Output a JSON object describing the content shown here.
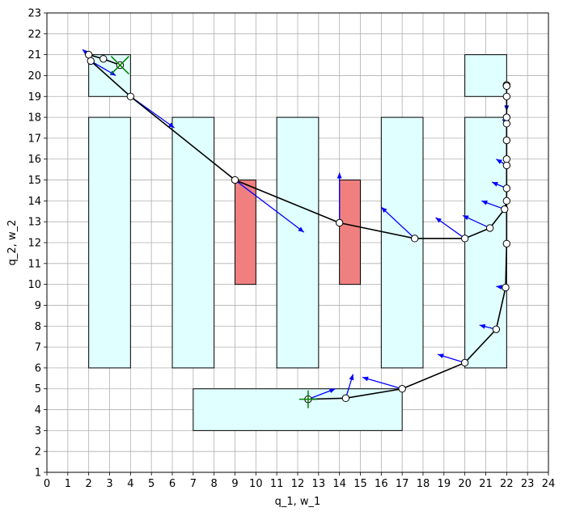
{
  "chart_data": {
    "type": "scatter",
    "title": "",
    "xlabel": "q_1, w_1",
    "ylabel": "q_2, w_2",
    "xlim": [
      0,
      24
    ],
    "ylim": [
      1,
      23
    ],
    "xticks": [
      0,
      1,
      2,
      3,
      4,
      5,
      6,
      7,
      8,
      9,
      10,
      11,
      12,
      13,
      14,
      15,
      16,
      17,
      18,
      19,
      20,
      21,
      22,
      23,
      24
    ],
    "yticks": [
      1,
      2,
      3,
      4,
      5,
      6,
      7,
      8,
      9,
      10,
      11,
      12,
      13,
      14,
      15,
      16,
      17,
      18,
      19,
      20,
      21,
      22,
      23
    ],
    "grid": true,
    "colors": {
      "free_region": "#e0ffff",
      "obstacle": "#f08080",
      "path": "#000000",
      "velocity_arrow": "#0000ff",
      "marker": "#008000"
    },
    "free_regions": [
      {
        "x0": 2,
        "x1": 4,
        "y0": 19,
        "y1": 21
      },
      {
        "x0": 2,
        "x1": 4,
        "y0": 6,
        "y1": 18
      },
      {
        "x0": 6,
        "x1": 8,
        "y0": 6,
        "y1": 18
      },
      {
        "x0": 11,
        "x1": 13,
        "y0": 6,
        "y1": 18
      },
      {
        "x0": 16,
        "x1": 18,
        "y0": 6,
        "y1": 18
      },
      {
        "x0": 20,
        "x1": 22,
        "y0": 19,
        "y1": 21
      },
      {
        "x0": 20,
        "x1": 22,
        "y0": 6,
        "y1": 18
      },
      {
        "x0": 7,
        "x1": 17,
        "y0": 3,
        "y1": 5
      }
    ],
    "obstacles": [
      {
        "x0": 9,
        "x1": 10,
        "y0": 10,
        "y1": 15
      },
      {
        "x0": 14,
        "x1": 15,
        "y0": 10,
        "y1": 15
      }
    ],
    "path": [
      {
        "x": 3.5,
        "y": 20.5
      },
      {
        "x": 2.7,
        "y": 20.8
      },
      {
        "x": 2.0,
        "y": 21.0
      },
      {
        "x": 2.1,
        "y": 20.7
      },
      {
        "x": 4.0,
        "y": 19.0
      },
      {
        "x": 9.0,
        "y": 15.0
      },
      {
        "x": 14.0,
        "y": 12.95
      },
      {
        "x": 17.6,
        "y": 12.2
      },
      {
        "x": 20.0,
        "y": 12.2
      },
      {
        "x": 21.2,
        "y": 12.7
      },
      {
        "x": 21.9,
        "y": 13.6
      },
      {
        "x": 22.0,
        "y": 14.0
      },
      {
        "x": 22.0,
        "y": 14.6
      },
      {
        "x": 22.0,
        "y": 15.7
      },
      {
        "x": 22.0,
        "y": 16.0
      },
      {
        "x": 22.0,
        "y": 16.9
      },
      {
        "x": 22.0,
        "y": 17.7
      },
      {
        "x": 22.0,
        "y": 18.0
      },
      {
        "x": 22.0,
        "y": 19.0
      },
      {
        "x": 22.0,
        "y": 19.5
      },
      {
        "x": 22.0,
        "y": 19.55
      },
      {
        "x": 22.0,
        "y": 19.5
      },
      {
        "x": 22.0,
        "y": 11.95
      },
      {
        "x": 21.95,
        "y": 9.85
      },
      {
        "x": 21.5,
        "y": 7.85
      },
      {
        "x": 20.0,
        "y": 6.25
      },
      {
        "x": 17.0,
        "y": 5.0
      },
      {
        "x": 14.3,
        "y": 4.55
      },
      {
        "x": 12.5,
        "y": 4.5
      }
    ],
    "velocity_arrows": [
      {
        "x": 2.0,
        "y": 21.0,
        "dx": -0.3,
        "dy": 0.25
      },
      {
        "x": 2.1,
        "y": 20.7,
        "dx": 1.2,
        "dy": -0.7
      },
      {
        "x": 4.0,
        "y": 19.0,
        "dx": 2.1,
        "dy": -1.5
      },
      {
        "x": 9.0,
        "y": 15.0,
        "dx": 3.3,
        "dy": -2.5
      },
      {
        "x": 14.0,
        "y": 12.95,
        "dx": 0.0,
        "dy": 2.4
      },
      {
        "x": 17.6,
        "y": 12.2,
        "dx": -1.6,
        "dy": 1.5
      },
      {
        "x": 20.0,
        "y": 12.2,
        "dx": -1.4,
        "dy": 1.0
      },
      {
        "x": 21.2,
        "y": 12.7,
        "dx": -1.3,
        "dy": 0.6
      },
      {
        "x": 21.9,
        "y": 13.6,
        "dx": -1.1,
        "dy": 0.4
      },
      {
        "x": 22.0,
        "y": 14.6,
        "dx": -0.7,
        "dy": 0.3
      },
      {
        "x": 22.0,
        "y": 15.7,
        "dx": -0.5,
        "dy": 0.3
      },
      {
        "x": 22.0,
        "y": 17.7,
        "dx": -0.2,
        "dy": 0.2
      },
      {
        "x": 22.0,
        "y": 19.0,
        "dx": 0.0,
        "dy": -0.7
      },
      {
        "x": 21.95,
        "y": 9.85,
        "dx": -0.45,
        "dy": 0.05
      },
      {
        "x": 21.5,
        "y": 7.85,
        "dx": -0.8,
        "dy": 0.2
      },
      {
        "x": 20.0,
        "y": 6.25,
        "dx": -1.3,
        "dy": 0.4
      },
      {
        "x": 17.0,
        "y": 5.0,
        "dx": -1.9,
        "dy": 0.55
      },
      {
        "x": 14.3,
        "y": 4.55,
        "dx": 0.35,
        "dy": 1.15
      },
      {
        "x": 12.5,
        "y": 4.5,
        "dx": 1.3,
        "dy": 0.5
      }
    ],
    "markers": [
      {
        "x": 3.5,
        "y": 20.5,
        "style": "x"
      },
      {
        "x": 12.5,
        "y": 4.5,
        "style": "+"
      }
    ]
  }
}
